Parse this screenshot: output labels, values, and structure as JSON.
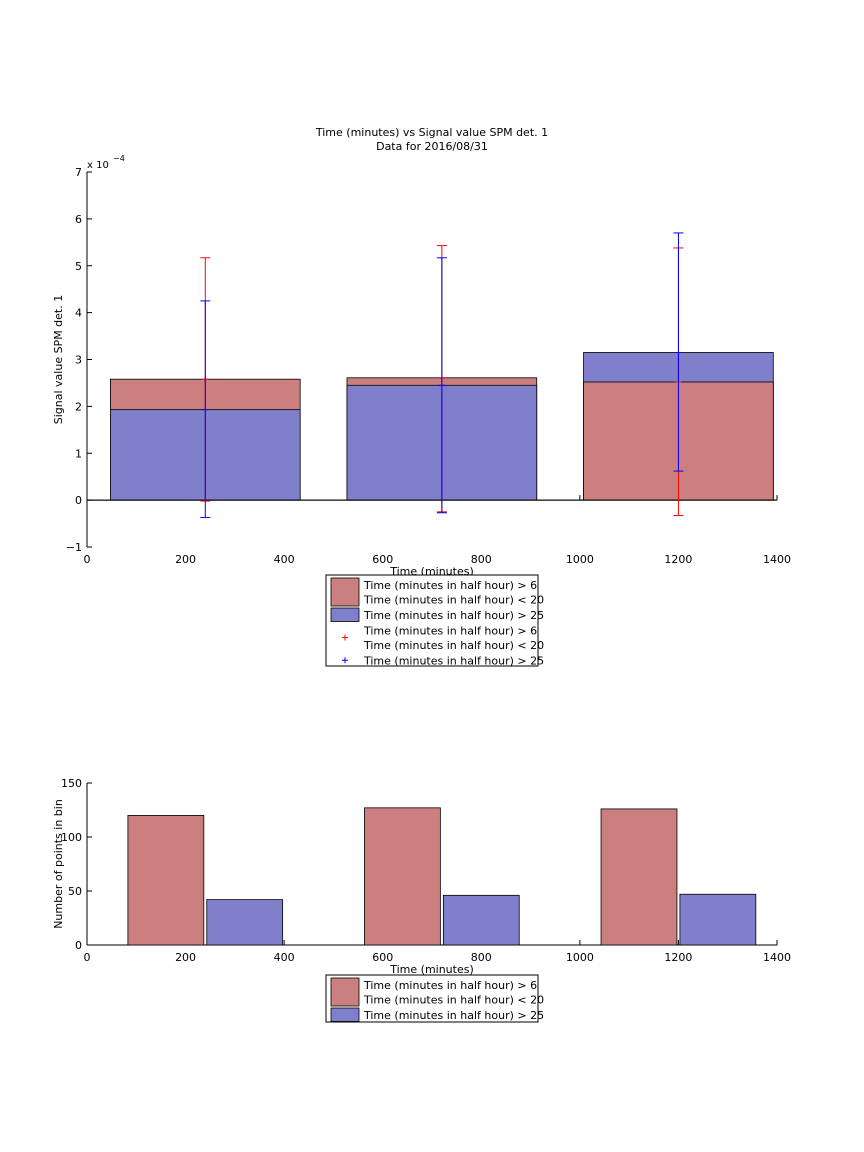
{
  "chart_data": [
    {
      "type": "bar",
      "title": "Time (minutes) vs Signal value SPM det. 1",
      "subtitle": "Data for 2016/08/31",
      "xlabel": "Time (minutes)",
      "ylabel": "Signal value SPM det. 1",
      "exponent_label": "x 10",
      "exponent_power": "−4",
      "xlim": [
        0,
        1400
      ],
      "ylim": [
        -1,
        7
      ],
      "xticks": [
        0,
        200,
        400,
        600,
        800,
        1000,
        1200,
        1400
      ],
      "yticks": [
        -1,
        0,
        1,
        2,
        3,
        4,
        5,
        6,
        7
      ],
      "tick_labels_x": [
        "0",
        "200",
        "400",
        "600",
        "800",
        "1000",
        "1200",
        "1400"
      ],
      "tick_labels_y": [
        "−1",
        "0",
        "1",
        "2",
        "3",
        "4",
        "5",
        "6",
        "7"
      ],
      "categories": [
        240,
        720,
        1200
      ],
      "bar_width": 385,
      "series": [
        {
          "name": "Time (minutes in half hour) > 6\nTime (minutes in half hour) < 20",
          "color": "#cc7f7f",
          "values": [
            2.58,
            2.61,
            2.52
          ],
          "err_low": [
            -0.02,
            -0.25,
            -0.33
          ],
          "err_high": [
            5.17,
            5.43,
            5.38
          ]
        },
        {
          "name": "Time (minutes in half hour) > 25",
          "color": "#7f7fcc",
          "values": [
            1.93,
            2.45,
            3.15
          ],
          "err_low": [
            -0.37,
            -0.27,
            0.62
          ],
          "err_high": [
            4.25,
            5.17,
            5.7
          ]
        }
      ],
      "legend": {
        "placement": "below",
        "entries": [
          {
            "marker": "patch",
            "color": "#cc7f7f",
            "lines": [
              "Time (minutes in half hour) > 6",
              "Time (minutes in half hour) < 20"
            ]
          },
          {
            "marker": "patch",
            "color": "#7f7fcc",
            "lines": [
              "Time (minutes in half hour) > 25"
            ]
          },
          {
            "marker": "plus",
            "color": "#ff0000",
            "lines": [
              "Time (minutes in half hour) > 6",
              "Time (minutes in half hour) < 20"
            ]
          },
          {
            "marker": "plus",
            "color": "#0000ff",
            "lines": [
              "Time (minutes in half hour) > 25"
            ]
          }
        ]
      }
    },
    {
      "type": "bar",
      "xlabel": "Time (minutes)",
      "ylabel": "Number of points in bin",
      "xlim": [
        0,
        1400
      ],
      "ylim": [
        0,
        150
      ],
      "xticks": [
        0,
        200,
        400,
        600,
        800,
        1000,
        1200,
        1400
      ],
      "yticks": [
        0,
        50,
        100,
        150
      ],
      "tick_labels_x": [
        "0",
        "200",
        "400",
        "600",
        "800",
        "1000",
        "1200",
        "1400"
      ],
      "tick_labels_y": [
        "0",
        "50",
        "100",
        "150"
      ],
      "categories": [
        240,
        720,
        1200
      ],
      "group_width": 320,
      "series": [
        {
          "name": "Time (minutes in half hour) > 6\nTime (minutes in half hour) < 20",
          "color": "#cc7f7f",
          "values": [
            120,
            127,
            126
          ]
        },
        {
          "name": "Time (minutes in half hour) > 25",
          "color": "#7f7fcc",
          "values": [
            42,
            46,
            47
          ]
        }
      ],
      "legend": {
        "placement": "below",
        "entries": [
          {
            "marker": "patch",
            "color": "#cc7f7f",
            "lines": [
              "Time (minutes in half hour) > 6",
              "Time (minutes in half hour) < 20"
            ]
          },
          {
            "marker": "patch",
            "color": "#7f7fcc",
            "lines": [
              "Time (minutes in half hour) > 25"
            ]
          }
        ]
      }
    }
  ]
}
